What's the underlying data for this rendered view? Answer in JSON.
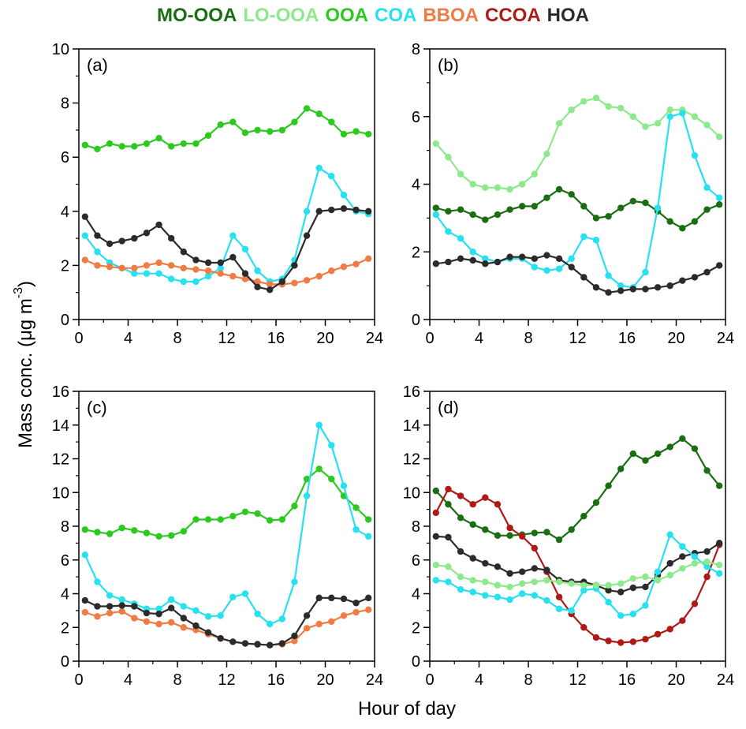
{
  "legend": [
    {
      "name": "MO-OOA",
      "color": "#1a6e12"
    },
    {
      "name": "LO-OOA",
      "color": "#8ee98c"
    },
    {
      "name": "OOA",
      "color": "#2dc91f"
    },
    {
      "name": "COA",
      "color": "#27e0f0"
    },
    {
      "name": "BBOA",
      "color": "#f07c45"
    },
    {
      "name": "CCOA",
      "color": "#b01a16"
    },
    {
      "name": "HOA",
      "color": "#2b2b2b"
    }
  ],
  "ylabel": "Mass conc. (μg m",
  "ylabel_sup": "-3",
  "ylabel_close": ")",
  "xlabel": "Hour of day",
  "chart_data": [
    {
      "type": "line",
      "panel": "(a)",
      "ylim": [
        0,
        10
      ],
      "yticks": [
        0,
        2,
        4,
        6,
        8,
        10
      ],
      "xlim": [
        0,
        24
      ],
      "xticks": [
        0,
        4,
        8,
        12,
        16,
        20,
        24
      ],
      "x": [
        0.5,
        1.5,
        2.5,
        3.5,
        4.5,
        5.5,
        6.5,
        7.5,
        8.5,
        9.5,
        10.5,
        11.5,
        12.5,
        13.5,
        14.5,
        15.5,
        16.5,
        17.5,
        18.5,
        19.5,
        20.5,
        21.5,
        22.5,
        23.5
      ],
      "series": [
        {
          "name": "OOA",
          "color": "#2dc91f",
          "values": [
            6.45,
            6.3,
            6.5,
            6.4,
            6.4,
            6.5,
            6.7,
            6.4,
            6.5,
            6.5,
            6.8,
            7.2,
            7.3,
            6.9,
            7.0,
            6.95,
            7.0,
            7.3,
            7.8,
            7.6,
            7.3,
            6.85,
            6.95,
            6.85
          ]
        },
        {
          "name": "COA",
          "color": "#27e0f0",
          "values": [
            3.1,
            2.5,
            2.1,
            1.9,
            1.7,
            1.7,
            1.7,
            1.5,
            1.4,
            1.4,
            1.6,
            1.9,
            3.1,
            2.6,
            1.8,
            1.4,
            1.5,
            2.2,
            4.0,
            5.6,
            5.3,
            4.6,
            4.0,
            3.9
          ]
        },
        {
          "name": "BBOA",
          "color": "#f07c45",
          "values": [
            2.2,
            2.0,
            1.95,
            1.9,
            1.9,
            2.0,
            2.1,
            2.0,
            1.9,
            1.85,
            1.8,
            1.7,
            1.6,
            1.5,
            1.4,
            1.3,
            1.3,
            1.35,
            1.45,
            1.6,
            1.8,
            1.95,
            2.05,
            2.25
          ]
        },
        {
          "name": "HOA",
          "color": "#2b2b2b",
          "values": [
            3.8,
            3.1,
            2.8,
            2.9,
            3.0,
            3.2,
            3.5,
            3.0,
            2.5,
            2.2,
            2.1,
            2.1,
            2.3,
            1.7,
            1.2,
            1.1,
            1.4,
            2.0,
            3.1,
            4.0,
            4.05,
            4.1,
            4.05,
            4.0
          ]
        }
      ]
    },
    {
      "type": "line",
      "panel": "(b)",
      "ylim": [
        0,
        8
      ],
      "yticks": [
        0,
        2,
        4,
        6,
        8
      ],
      "xlim": [
        0,
        24
      ],
      "xticks": [
        0,
        4,
        8,
        12,
        16,
        20,
        24
      ],
      "x": [
        0.5,
        1.5,
        2.5,
        3.5,
        4.5,
        5.5,
        6.5,
        7.5,
        8.5,
        9.5,
        10.5,
        11.5,
        12.5,
        13.5,
        14.5,
        15.5,
        16.5,
        17.5,
        18.5,
        19.5,
        20.5,
        21.5,
        22.5,
        23.5
      ],
      "series": [
        {
          "name": "LO-OOA",
          "color": "#8ee98c",
          "values": [
            5.2,
            4.8,
            4.3,
            4.0,
            3.9,
            3.9,
            3.85,
            4.0,
            4.3,
            4.9,
            5.8,
            6.2,
            6.45,
            6.55,
            6.3,
            6.25,
            6.0,
            5.7,
            5.8,
            6.2,
            6.2,
            6.0,
            5.75,
            5.4
          ]
        },
        {
          "name": "MO-OOA",
          "color": "#1a6e12",
          "values": [
            3.3,
            3.2,
            3.25,
            3.1,
            2.95,
            3.1,
            3.25,
            3.35,
            3.35,
            3.6,
            3.85,
            3.7,
            3.35,
            3.0,
            3.05,
            3.3,
            3.5,
            3.45,
            3.2,
            2.9,
            2.7,
            2.9,
            3.25,
            3.4
          ]
        },
        {
          "name": "COA",
          "color": "#27e0f0",
          "values": [
            3.1,
            2.6,
            2.4,
            2.0,
            1.8,
            1.7,
            1.8,
            1.8,
            1.55,
            1.45,
            1.5,
            1.8,
            2.45,
            2.35,
            1.3,
            1.0,
            0.95,
            1.4,
            3.3,
            6.0,
            6.1,
            4.85,
            3.9,
            3.6
          ]
        },
        {
          "name": "HOA",
          "color": "#2b2b2b",
          "values": [
            1.65,
            1.7,
            1.8,
            1.75,
            1.65,
            1.7,
            1.85,
            1.85,
            1.8,
            1.9,
            1.8,
            1.55,
            1.25,
            0.95,
            0.8,
            0.85,
            0.9,
            0.9,
            0.95,
            1.0,
            1.15,
            1.25,
            1.4,
            1.6
          ]
        }
      ]
    },
    {
      "type": "line",
      "panel": "(c)",
      "ylim": [
        0,
        16
      ],
      "yticks": [
        0,
        2,
        4,
        6,
        8,
        10,
        12,
        14,
        16
      ],
      "xlim": [
        0,
        24
      ],
      "xticks": [
        0,
        4,
        8,
        12,
        16,
        20,
        24
      ],
      "x": [
        0.5,
        1.5,
        2.5,
        3.5,
        4.5,
        5.5,
        6.5,
        7.5,
        8.5,
        9.5,
        10.5,
        11.5,
        12.5,
        13.5,
        14.5,
        15.5,
        16.5,
        17.5,
        18.5,
        19.5,
        20.5,
        21.5,
        22.5,
        23.5
      ],
      "series": [
        {
          "name": "OOA",
          "color": "#2dc91f",
          "values": [
            7.8,
            7.65,
            7.55,
            7.9,
            7.75,
            7.6,
            7.4,
            7.45,
            7.7,
            8.4,
            8.4,
            8.4,
            8.6,
            8.85,
            8.75,
            8.35,
            8.4,
            9.2,
            10.8,
            11.4,
            10.8,
            9.8,
            9.1,
            8.4
          ]
        },
        {
          "name": "COA",
          "color": "#27e0f0",
          "values": [
            6.3,
            4.7,
            3.9,
            3.65,
            3.4,
            3.1,
            3.1,
            3.65,
            3.25,
            3.0,
            2.65,
            2.7,
            3.8,
            4.0,
            2.8,
            2.2,
            2.5,
            4.7,
            9.8,
            14.0,
            12.8,
            10.4,
            7.8,
            7.4
          ]
        },
        {
          "name": "BBOA",
          "color": "#f07c45",
          "values": [
            2.9,
            2.65,
            2.85,
            2.95,
            2.55,
            2.35,
            2.2,
            2.3,
            2.0,
            1.85,
            1.6,
            1.35,
            1.15,
            1.05,
            1.0,
            0.95,
            1.0,
            1.2,
            1.95,
            2.2,
            2.35,
            2.7,
            2.9,
            3.05
          ]
        },
        {
          "name": "HOA",
          "color": "#2b2b2b",
          "values": [
            3.6,
            3.25,
            3.25,
            3.3,
            3.25,
            2.85,
            2.8,
            3.15,
            2.55,
            2.1,
            1.7,
            1.35,
            1.15,
            1.05,
            1.0,
            0.95,
            1.05,
            1.5,
            2.7,
            3.75,
            3.75,
            3.7,
            3.45,
            3.75
          ]
        }
      ]
    },
    {
      "type": "line",
      "panel": "(d)",
      "ylim": [
        0,
        16
      ],
      "yticks": [
        0,
        2,
        4,
        6,
        8,
        10,
        12,
        14,
        16
      ],
      "xlim": [
        0,
        24
      ],
      "xticks": [
        0,
        4,
        8,
        12,
        16,
        20,
        24
      ],
      "x": [
        0.5,
        1.5,
        2.5,
        3.5,
        4.5,
        5.5,
        6.5,
        7.5,
        8.5,
        9.5,
        10.5,
        11.5,
        12.5,
        13.5,
        14.5,
        15.5,
        16.5,
        17.5,
        18.5,
        19.5,
        20.5,
        21.5,
        22.5,
        23.5
      ],
      "series": [
        {
          "name": "MO-OOA",
          "color": "#1a6e12",
          "values": [
            10.1,
            9.3,
            8.5,
            8.1,
            7.8,
            7.45,
            7.45,
            7.5,
            7.6,
            7.65,
            7.2,
            7.8,
            8.6,
            9.4,
            10.4,
            11.4,
            12.3,
            11.9,
            12.3,
            12.7,
            13.2,
            12.6,
            11.3,
            10.4
          ]
        },
        {
          "name": "CCOA",
          "color": "#b01a16",
          "values": [
            8.8,
            10.2,
            9.8,
            9.3,
            9.7,
            9.3,
            7.9,
            7.4,
            6.7,
            5.3,
            3.8,
            2.8,
            2.0,
            1.4,
            1.2,
            1.1,
            1.15,
            1.3,
            1.6,
            1.9,
            2.4,
            3.4,
            5.0,
            6.9
          ]
        },
        {
          "name": "HOA",
          "color": "#2b2b2b",
          "values": [
            7.4,
            7.35,
            6.5,
            6.1,
            5.8,
            5.6,
            5.2,
            5.3,
            5.5,
            5.4,
            4.8,
            4.7,
            4.7,
            4.5,
            4.2,
            4.1,
            4.35,
            4.4,
            5.1,
            5.8,
            6.2,
            6.4,
            6.5,
            7.0
          ]
        },
        {
          "name": "COA",
          "color": "#27e0f0",
          "values": [
            4.8,
            4.7,
            4.25,
            4.1,
            3.9,
            3.8,
            3.65,
            4.0,
            3.9,
            3.6,
            3.1,
            3.0,
            4.2,
            4.3,
            3.5,
            2.7,
            2.8,
            3.3,
            5.3,
            7.5,
            6.8,
            6.2,
            5.6,
            5.2
          ]
        },
        {
          "name": "LO-OOA",
          "color": "#8ee98c",
          "values": [
            5.7,
            5.6,
            5.0,
            4.8,
            4.7,
            4.5,
            4.4,
            4.6,
            4.7,
            4.8,
            4.7,
            4.6,
            4.5,
            4.5,
            4.5,
            4.6,
            4.9,
            5.0,
            4.8,
            5.1,
            5.5,
            5.8,
            5.9,
            5.7
          ]
        }
      ]
    }
  ]
}
